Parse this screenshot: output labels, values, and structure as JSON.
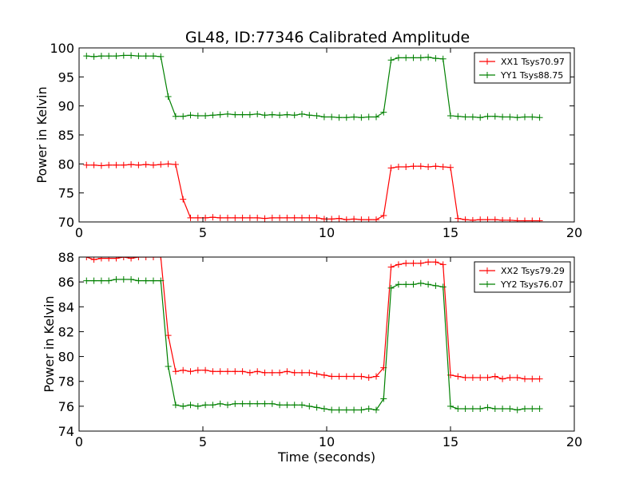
{
  "title": "GL48, ID:77346 Calibrated Amplitude",
  "chart_data": [
    {
      "type": "line",
      "xlabel": "",
      "ylabel": "Power in Kelvin",
      "xlim": [
        0,
        20
      ],
      "ylim": [
        70,
        100
      ],
      "xticks": [
        0,
        5,
        10,
        15,
        20
      ],
      "yticks": [
        70,
        75,
        80,
        85,
        90,
        95,
        100
      ],
      "grid": false,
      "legend_position": "top-right",
      "series": [
        {
          "name": "XX1 Tsys70.97",
          "color": "#ff0000",
          "x": [
            0.3,
            0.6,
            0.9,
            1.2,
            1.5,
            1.8,
            2.1,
            2.4,
            2.7,
            3.0,
            3.3,
            3.6,
            3.9,
            4.2,
            4.5,
            4.8,
            5.1,
            5.4,
            5.7,
            6.0,
            6.3,
            6.6,
            6.9,
            7.2,
            7.5,
            7.8,
            8.1,
            8.4,
            8.7,
            9.0,
            9.3,
            9.6,
            9.9,
            10.2,
            10.5,
            10.8,
            11.1,
            11.4,
            11.7,
            12.0,
            12.3,
            12.6,
            12.9,
            13.2,
            13.5,
            13.8,
            14.1,
            14.4,
            14.7,
            15.0,
            15.3,
            15.6,
            15.9,
            16.2,
            16.5,
            16.8,
            17.1,
            17.4,
            17.7,
            18.0,
            18.3,
            18.6
          ],
          "values": [
            79.8,
            79.8,
            79.7,
            79.8,
            79.8,
            79.8,
            79.9,
            79.8,
            79.9,
            79.8,
            79.9,
            80.0,
            79.9,
            73.9,
            70.7,
            70.7,
            70.7,
            70.8,
            70.7,
            70.7,
            70.7,
            70.7,
            70.7,
            70.7,
            70.6,
            70.7,
            70.7,
            70.7,
            70.7,
            70.7,
            70.7,
            70.7,
            70.5,
            70.5,
            70.6,
            70.4,
            70.5,
            70.4,
            70.4,
            70.4,
            71.1,
            79.3,
            79.5,
            79.5,
            79.6,
            79.6,
            79.5,
            79.6,
            79.5,
            79.4,
            70.6,
            70.4,
            70.3,
            70.4,
            70.4,
            70.4,
            70.3,
            70.3,
            70.2,
            70.2,
            70.2,
            70.2
          ]
        },
        {
          "name": "YY1 Tsys88.75",
          "color": "#008000",
          "x": [
            0.3,
            0.6,
            0.9,
            1.2,
            1.5,
            1.8,
            2.1,
            2.4,
            2.7,
            3.0,
            3.3,
            3.6,
            3.9,
            4.2,
            4.5,
            4.8,
            5.1,
            5.4,
            5.7,
            6.0,
            6.3,
            6.6,
            6.9,
            7.2,
            7.5,
            7.8,
            8.1,
            8.4,
            8.7,
            9.0,
            9.3,
            9.6,
            9.9,
            10.2,
            10.5,
            10.8,
            11.1,
            11.4,
            11.7,
            12.0,
            12.3,
            12.6,
            12.9,
            13.2,
            13.5,
            13.8,
            14.1,
            14.4,
            14.7,
            15.0,
            15.3,
            15.6,
            15.9,
            16.2,
            16.5,
            16.8,
            17.1,
            17.4,
            17.7,
            18.0,
            18.3,
            18.6
          ],
          "values": [
            98.6,
            98.5,
            98.6,
            98.6,
            98.6,
            98.7,
            98.7,
            98.6,
            98.6,
            98.6,
            98.5,
            91.6,
            88.2,
            88.2,
            88.4,
            88.3,
            88.3,
            88.4,
            88.5,
            88.6,
            88.5,
            88.5,
            88.5,
            88.6,
            88.4,
            88.5,
            88.4,
            88.5,
            88.4,
            88.6,
            88.4,
            88.3,
            88.1,
            88.1,
            88.0,
            88.0,
            88.1,
            88.0,
            88.1,
            88.1,
            88.9,
            97.9,
            98.3,
            98.3,
            98.3,
            98.3,
            98.4,
            98.2,
            98.1,
            88.3,
            88.2,
            88.1,
            88.1,
            88.0,
            88.2,
            88.2,
            88.1,
            88.1,
            88.0,
            88.1,
            88.1,
            88.0
          ]
        }
      ]
    },
    {
      "type": "line",
      "xlabel": "Time (seconds)",
      "ylabel": "Power in Kelvin",
      "xlim": [
        0,
        20
      ],
      "ylim": [
        74,
        88
      ],
      "xticks": [
        0,
        5,
        10,
        15,
        20
      ],
      "yticks": [
        74,
        76,
        78,
        80,
        82,
        84,
        86,
        88
      ],
      "grid": false,
      "legend_position": "top-right",
      "series": [
        {
          "name": "XX2 Tsys79.29",
          "color": "#ff0000",
          "x": [
            0.3,
            0.6,
            0.9,
            1.2,
            1.5,
            1.8,
            2.1,
            2.4,
            2.7,
            3.0,
            3.3,
            3.6,
            3.9,
            4.2,
            4.5,
            4.8,
            5.1,
            5.4,
            5.7,
            6.0,
            6.3,
            6.6,
            6.9,
            7.2,
            7.5,
            7.8,
            8.1,
            8.4,
            8.7,
            9.0,
            9.3,
            9.6,
            9.9,
            10.2,
            10.5,
            10.8,
            11.1,
            11.4,
            11.7,
            12.0,
            12.3,
            12.6,
            12.9,
            13.2,
            13.5,
            13.8,
            14.1,
            14.4,
            14.7,
            15.0,
            15.3,
            15.6,
            15.9,
            16.2,
            16.5,
            16.8,
            17.1,
            17.4,
            17.7,
            18.0,
            18.3,
            18.6
          ],
          "values": [
            88.0,
            87.8,
            87.9,
            87.9,
            87.9,
            88.0,
            87.9,
            88.0,
            88.0,
            88.0,
            88.0,
            81.7,
            78.8,
            78.9,
            78.8,
            78.9,
            78.9,
            78.8,
            78.8,
            78.8,
            78.8,
            78.8,
            78.7,
            78.8,
            78.7,
            78.7,
            78.7,
            78.8,
            78.7,
            78.7,
            78.7,
            78.6,
            78.5,
            78.4,
            78.4,
            78.4,
            78.4,
            78.4,
            78.3,
            78.4,
            79.1,
            87.2,
            87.4,
            87.5,
            87.5,
            87.5,
            87.6,
            87.6,
            87.4,
            78.5,
            78.4,
            78.3,
            78.3,
            78.3,
            78.3,
            78.4,
            78.2,
            78.3,
            78.3,
            78.2,
            78.2,
            78.2
          ],
          "lower_start_index": 0
        },
        {
          "name": "YY2 Tsys76.07",
          "color": "#008000",
          "x": [
            0.3,
            0.6,
            0.9,
            1.2,
            1.5,
            1.8,
            2.1,
            2.4,
            2.7,
            3.0,
            3.3,
            3.6,
            3.9,
            4.2,
            4.5,
            4.8,
            5.1,
            5.4,
            5.7,
            6.0,
            6.3,
            6.6,
            6.9,
            7.2,
            7.5,
            7.8,
            8.1,
            8.4,
            8.7,
            9.0,
            9.3,
            9.6,
            9.9,
            10.2,
            10.5,
            10.8,
            11.1,
            11.4,
            11.7,
            12.0,
            12.3,
            12.6,
            12.9,
            13.2,
            13.5,
            13.8,
            14.1,
            14.4,
            14.7,
            15.0,
            15.3,
            15.6,
            15.9,
            16.2,
            16.5,
            16.8,
            17.1,
            17.4,
            17.7,
            18.0,
            18.3,
            18.6
          ],
          "values": [
            86.1,
            86.1,
            86.1,
            86.1,
            86.2,
            86.2,
            86.2,
            86.1,
            86.1,
            86.1,
            86.1,
            79.2,
            76.1,
            76.0,
            76.1,
            76.0,
            76.1,
            76.1,
            76.2,
            76.1,
            76.2,
            76.2,
            76.2,
            76.2,
            76.2,
            76.2,
            76.1,
            76.1,
            76.1,
            76.1,
            76.0,
            75.9,
            75.8,
            75.7,
            75.7,
            75.7,
            75.7,
            75.7,
            75.8,
            75.7,
            76.6,
            85.5,
            85.8,
            85.8,
            85.8,
            85.9,
            85.8,
            85.7,
            85.6,
            76.0,
            75.8,
            75.8,
            75.8,
            75.8,
            75.9,
            75.8,
            75.8,
            75.8,
            75.7,
            75.8,
            75.8,
            75.8
          ]
        }
      ]
    }
  ]
}
